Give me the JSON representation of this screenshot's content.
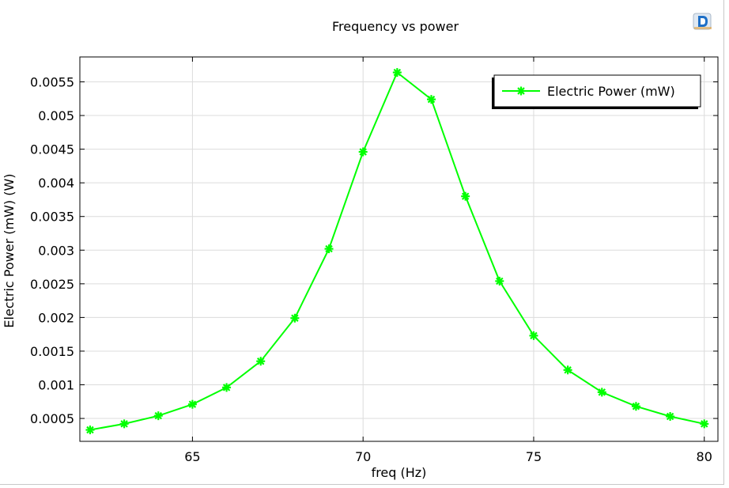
{
  "chart_data": {
    "type": "line",
    "title": "Frequency vs power",
    "xlabel": "freq (Hz)",
    "ylabel": "Electric Power (mW) (W)",
    "xlim": [
      61.7,
      80.4
    ],
    "ylim": [
      0.00016,
      0.00587
    ],
    "xticks": [
      65,
      70,
      75,
      80
    ],
    "xtick_labels": [
      "65",
      "70",
      "75",
      "80"
    ],
    "yticks": [
      0.0005,
      0.001,
      0.0015,
      0.002,
      0.0025,
      0.003,
      0.0035,
      0.004,
      0.0045,
      0.005,
      0.0055
    ],
    "ytick_labels": [
      "0.0005",
      "0.001",
      "0.0015",
      "0.002",
      "0.0025",
      "0.003",
      "0.0035",
      "0.004",
      "0.0045",
      "0.005",
      "0.0055"
    ],
    "grid": true,
    "legend_position": "top-right",
    "series": [
      {
        "name": "Electric Power (mW)",
        "color": "#00ff00",
        "marker": "asterisk",
        "x": [
          62,
          63,
          64,
          65,
          66,
          67,
          68,
          69,
          70,
          71,
          72,
          73,
          74,
          75,
          76,
          77,
          78,
          79,
          80
        ],
        "y": [
          0.00033,
          0.00042,
          0.00054,
          0.00071,
          0.00096,
          0.00135,
          0.00199,
          0.00302,
          0.00446,
          0.00564,
          0.00524,
          0.0038,
          0.00254,
          0.00173,
          0.00122,
          0.00089,
          0.00068,
          0.00053,
          0.00042
        ]
      }
    ]
  }
}
